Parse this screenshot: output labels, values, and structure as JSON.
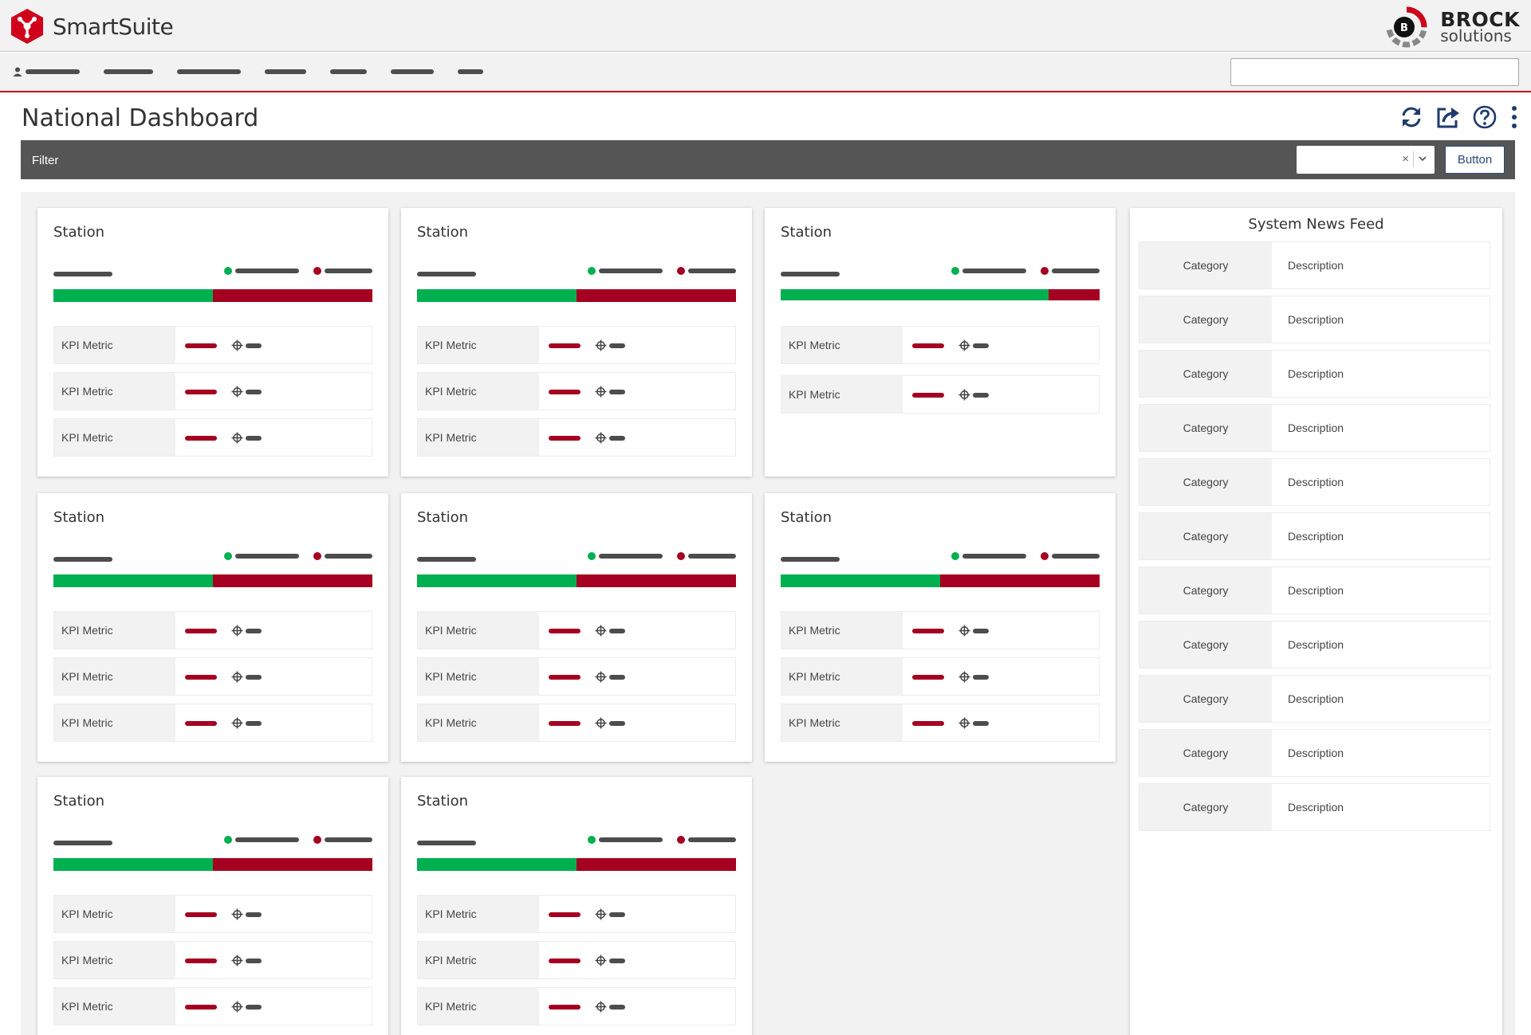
{
  "app": {
    "name": "SmartSuite"
  },
  "brand": {
    "name": "BROCK",
    "sub": "solutions",
    "badge": "B"
  },
  "page": {
    "title": "National Dashboard"
  },
  "filter": {
    "label": "Filter",
    "button_label": "Button",
    "clear_symbol": "×"
  },
  "colors": {
    "good": "#00b050",
    "bad": "#a50021",
    "accent": "#d0021b",
    "dark": "#555555"
  },
  "stations": [
    {
      "title": "Station",
      "good_fraction": 0.5,
      "metrics": [
        "KPI Metric",
        "KPI Metric",
        "KPI Metric"
      ]
    },
    {
      "title": "Station",
      "good_fraction": 0.5,
      "metrics": [
        "KPI Metric",
        "KPI Metric",
        "KPI Metric"
      ]
    },
    {
      "title": "Station",
      "good_fraction": 0.84,
      "metrics": [
        "KPI Metric",
        "KPI Metric"
      ]
    },
    {
      "title": "Station",
      "good_fraction": 0.5,
      "metrics": [
        "KPI Metric",
        "KPI Metric",
        "KPI Metric"
      ]
    },
    {
      "title": "Station",
      "good_fraction": 0.5,
      "metrics": [
        "KPI Metric",
        "KPI Metric",
        "KPI Metric"
      ]
    },
    {
      "title": "Station",
      "good_fraction": 0.5,
      "metrics": [
        "KPI Metric",
        "KPI Metric",
        "KPI Metric"
      ]
    },
    {
      "title": "Station",
      "good_fraction": 0.5,
      "metrics": [
        "KPI Metric",
        "KPI Metric",
        "KPI Metric"
      ]
    },
    {
      "title": "Station",
      "good_fraction": 0.5,
      "metrics": [
        "KPI Metric",
        "KPI Metric",
        "KPI Metric"
      ]
    }
  ],
  "news": {
    "title": "System News Feed",
    "items": [
      {
        "category": "Category",
        "description": "Description"
      },
      {
        "category": "Category",
        "description": "Description"
      },
      {
        "category": "Category",
        "description": "Description"
      },
      {
        "category": "Category",
        "description": "Description"
      },
      {
        "category": "Category",
        "description": "Description"
      },
      {
        "category": "Category",
        "description": "Description"
      },
      {
        "category": "Category",
        "description": "Description"
      },
      {
        "category": "Category",
        "description": "Description"
      },
      {
        "category": "Category",
        "description": "Description"
      },
      {
        "category": "Category",
        "description": "Description"
      },
      {
        "category": "Category",
        "description": "Description"
      }
    ]
  },
  "icons": [
    "refresh-icon",
    "share-icon",
    "help-icon",
    "more-vertical-icon",
    "user-icon",
    "target-icon",
    "chevron-down-icon"
  ]
}
